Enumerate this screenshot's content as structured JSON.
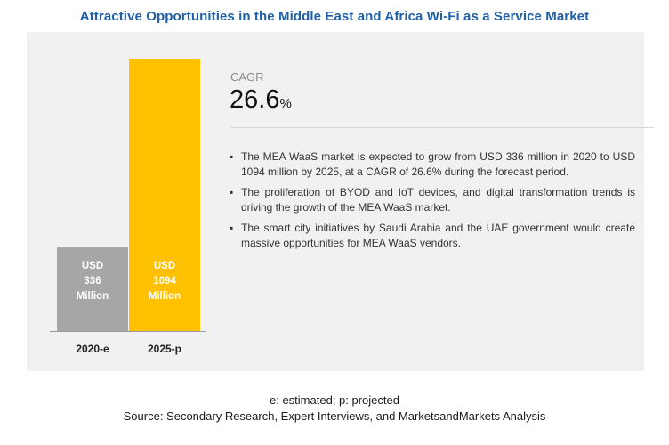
{
  "title": "Attractive Opportunities in the Middle East and Africa Wi-Fi as a Service Market",
  "chart_data": {
    "type": "bar",
    "categories": [
      "2020-e",
      "2025-p"
    ],
    "values": [
      336,
      1094
    ],
    "value_labels": [
      "USD\n336\nMillion",
      "USD\n1094\nMillion"
    ],
    "colors": [
      "#a6a6a6",
      "#ffc000"
    ],
    "ylim": [
      0,
      1094
    ],
    "unit": "USD Million"
  },
  "cagr": {
    "label": "CAGR",
    "number": "26.6",
    "suffix": "%"
  },
  "bullets": [
    "The MEA WaaS market is expected to grow from USD 336 million in 2020 to USD 1094 million by 2025, at a CAGR of 26.6% during the forecast period.",
    "The proliferation of BYOD and IoT devices, and digital transformation trends is driving the growth of the MEA WaaS market.",
    "The smart city initiatives by Saudi Arabia and the UAE government would create massive opportunities for MEA WaaS vendors."
  ],
  "footer": {
    "note": "e: estimated; p: projected",
    "source": "Source: Secondary Research, Expert Interviews, and MarketsandMarkets Analysis"
  }
}
